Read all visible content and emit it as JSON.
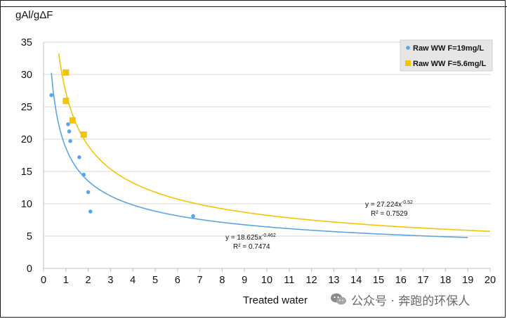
{
  "chart_data": {
    "type": "scatter",
    "ylabel": "gAl/gΔF",
    "xlabel": "Treated water",
    "xlim": [
      0,
      20
    ],
    "ylim": [
      0,
      35
    ],
    "x_ticks": [
      0,
      1,
      2,
      3,
      4,
      5,
      6,
      7,
      8,
      9,
      10,
      11,
      12,
      13,
      14,
      15,
      16,
      17,
      18,
      19,
      20
    ],
    "y_ticks": [
      0,
      5,
      10,
      15,
      20,
      25,
      30,
      35
    ],
    "grid": "horizontal",
    "legend_placement": "top-right",
    "series": [
      {
        "name": "Raw WW F=19mg/L",
        "color": "#5aa6e8",
        "marker": "circle",
        "points": [
          {
            "x": 0.35,
            "y": 26.8
          },
          {
            "x": 1.1,
            "y": 22.3
          },
          {
            "x": 1.15,
            "y": 21.2
          },
          {
            "x": 1.2,
            "y": 19.7
          },
          {
            "x": 1.6,
            "y": 17.2
          },
          {
            "x": 1.8,
            "y": 14.5
          },
          {
            "x": 2.0,
            "y": 11.8
          },
          {
            "x": 2.1,
            "y": 8.8
          },
          {
            "x": 6.7,
            "y": 8.1
          }
        ],
        "trendline": {
          "type": "power",
          "a": 18.625,
          "b": -0.462,
          "x_start": 0.35,
          "x_end": 19
        },
        "equation_text": "y = 18.625x",
        "equation_exponent": "-0.462",
        "r2_text": "R² = 0.7474"
      },
      {
        "name": "Raw WW F=5.6mg/L",
        "color": "#f5c400",
        "marker": "square",
        "points": [
          {
            "x": 1.0,
            "y": 30.3
          },
          {
            "x": 1.0,
            "y": 25.9
          },
          {
            "x": 1.3,
            "y": 22.9
          },
          {
            "x": 1.8,
            "y": 20.7
          }
        ],
        "trendline": {
          "type": "power",
          "a": 27.224,
          "b": -0.52,
          "x_start": 0.6,
          "x_end": 20
        },
        "equation_text": "y = 27.224x",
        "equation_exponent": "-0.52",
        "r2_text": "R² = 0.7529"
      }
    ]
  },
  "watermark": {
    "text": "公众号 · 奔跑的环保人",
    "icon": "wechat-icon"
  }
}
